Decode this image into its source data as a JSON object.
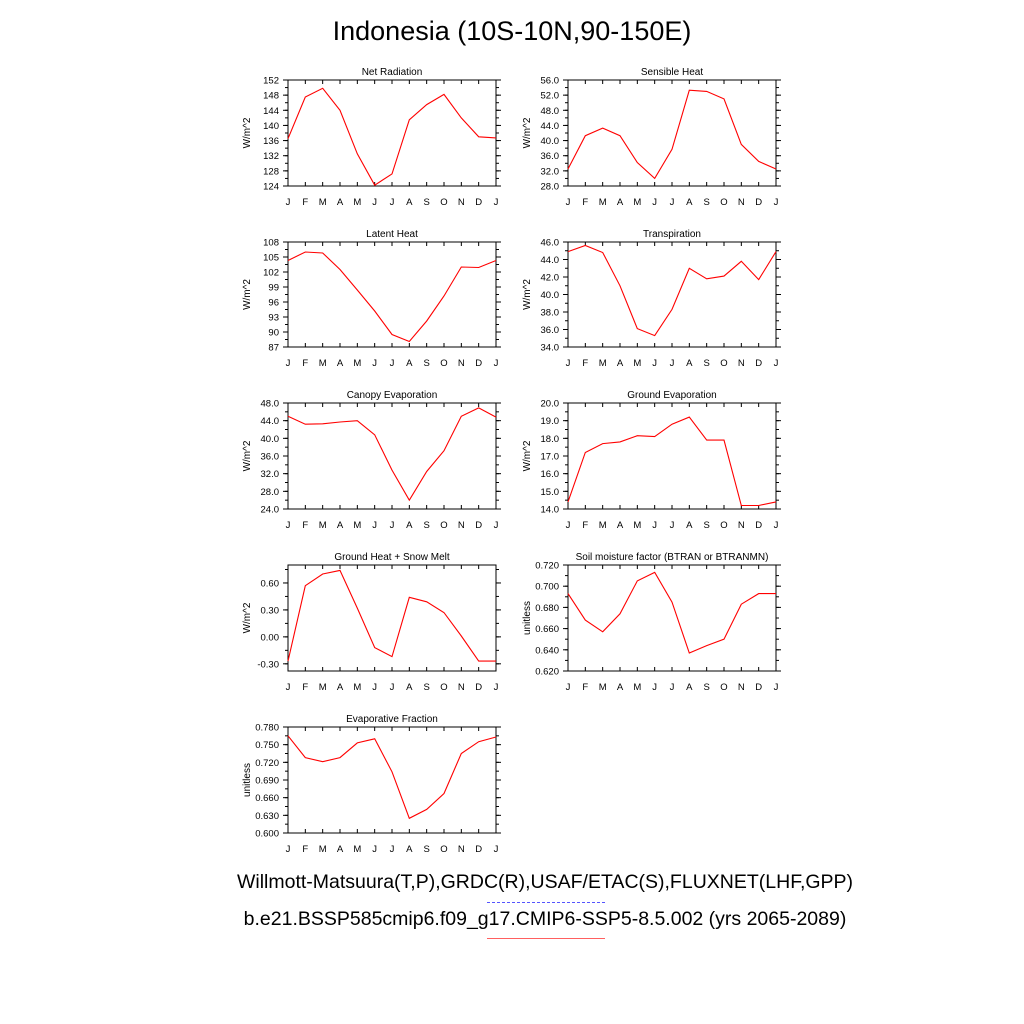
{
  "title": "Indonesia (10S-10N,90-150E)",
  "month_labels": [
    "J",
    "F",
    "M",
    "A",
    "M",
    "J",
    "J",
    "A",
    "S",
    "O",
    "N",
    "D",
    "J"
  ],
  "line_color": "#ff0000",
  "footer": {
    "line1": "Willmott-Matsuura(T,P),GRDC(R),USAF/ETAC(S),FLUXNET(LHF,GPP)",
    "line2": "b.e21.BSSP585cmip6.f09_g17.CMIP6-SSP5-8.5.002 (yrs 2065-2089)"
  },
  "chart_data": [
    {
      "type": "line",
      "title": "Net Radiation",
      "ylabel": "W/m^2",
      "ylim": [
        124,
        152
      ],
      "yticks": [
        "124",
        "128",
        "132",
        "136",
        "140",
        "144",
        "148",
        "152"
      ],
      "tick_values": [
        124,
        128,
        132,
        136,
        140,
        144,
        148,
        152
      ],
      "values": [
        136.5,
        147.5,
        149.8,
        144,
        132.5,
        124.2,
        127.2,
        141.5,
        145.5,
        148.2,
        142,
        137,
        136.7
      ]
    },
    {
      "type": "line",
      "title": "Sensible Heat",
      "ylabel": "W/m^2",
      "ylim": [
        28,
        56
      ],
      "yticks": [
        "28.0",
        "32.0",
        "36.0",
        "40.0",
        "44.0",
        "48.0",
        "52.0",
        "56.0"
      ],
      "tick_values": [
        28,
        32,
        36,
        40,
        44,
        48,
        52,
        56
      ],
      "values": [
        32.5,
        41.3,
        43.3,
        41.3,
        34.2,
        30,
        37.7,
        53.3,
        53,
        51,
        39,
        34.5,
        32.5
      ]
    },
    {
      "type": "line",
      "title": "Latent Heat",
      "ylabel": "W/m^2",
      "ylim": [
        87,
        108
      ],
      "yticks": [
        "87",
        "90",
        "93",
        "96",
        "99",
        "102",
        "105",
        "108"
      ],
      "tick_values": [
        87,
        90,
        93,
        96,
        99,
        102,
        105,
        108
      ],
      "values": [
        104.3,
        106,
        105.8,
        102.5,
        98.4,
        94.2,
        89.5,
        88.1,
        92.2,
        97.2,
        103,
        102.9,
        104.3
      ]
    },
    {
      "type": "line",
      "title": "Transpiration",
      "ylabel": "W/m^2",
      "ylim": [
        34,
        46
      ],
      "yticks": [
        "34.0",
        "36.0",
        "38.0",
        "40.0",
        "42.0",
        "44.0",
        "46.0"
      ],
      "tick_values": [
        34,
        36,
        38,
        40,
        42,
        44,
        46
      ],
      "values": [
        44.9,
        45.6,
        44.8,
        41,
        36.1,
        35.3,
        38.3,
        43,
        41.8,
        42.1,
        43.8,
        41.7,
        44.9
      ]
    },
    {
      "type": "line",
      "title": "Canopy Evaporation",
      "ylabel": "W/m^2",
      "ylim": [
        24,
        48
      ],
      "yticks": [
        "24.0",
        "28.0",
        "32.0",
        "36.0",
        "40.0",
        "44.0",
        "48.0"
      ],
      "tick_values": [
        24,
        28,
        32,
        36,
        40,
        44,
        48
      ],
      "values": [
        45,
        43.2,
        43.3,
        43.7,
        44,
        40.8,
        32.8,
        26,
        32.5,
        37.2,
        45,
        46.9,
        44.8
      ]
    },
    {
      "type": "line",
      "title": "Ground Evaporation",
      "ylabel": "W/m^2",
      "ylim": [
        14,
        20
      ],
      "yticks": [
        "14.0",
        "15.0",
        "16.0",
        "17.0",
        "18.0",
        "19.0",
        "20.0"
      ],
      "tick_values": [
        14,
        15,
        16,
        17,
        18,
        19,
        20
      ],
      "values": [
        14.4,
        17.2,
        17.7,
        17.8,
        18.15,
        18.1,
        18.8,
        19.2,
        17.9,
        17.9,
        14.2,
        14.2,
        14.4
      ]
    },
    {
      "type": "line",
      "title": "Ground Heat + Snow Melt",
      "ylabel": "W/m^2",
      "ylim": [
        -0.38,
        0.8
      ],
      "yticks": [
        "-0.30",
        "0.00",
        "0.30",
        "0.60"
      ],
      "tick_values": [
        -0.3,
        0,
        0.3,
        0.6
      ],
      "values": [
        -0.27,
        0.57,
        0.7,
        0.74,
        0.32,
        -0.12,
        -0.22,
        0.44,
        0.39,
        0.27,
        0.01,
        -0.27,
        -0.27
      ]
    },
    {
      "type": "line",
      "title": "Soil moisture factor (BTRAN or BTRANMN)",
      "ylabel": "unitless",
      "ylim": [
        0.62,
        0.72
      ],
      "yticks": [
        "0.620",
        "0.640",
        "0.660",
        "0.680",
        "0.700",
        "0.720"
      ],
      "tick_values": [
        0.62,
        0.64,
        0.66,
        0.68,
        0.7,
        0.72
      ],
      "values": [
        0.693,
        0.668,
        0.657,
        0.674,
        0.705,
        0.713,
        0.685,
        0.637,
        0.644,
        0.65,
        0.683,
        0.693,
        0.693
      ]
    },
    {
      "type": "line",
      "title": "Evaporative Fraction",
      "ylabel": "unitless",
      "ylim": [
        0.6,
        0.78
      ],
      "yticks": [
        "0.600",
        "0.630",
        "0.660",
        "0.690",
        "0.720",
        "0.750",
        "0.780"
      ],
      "tick_values": [
        0.6,
        0.63,
        0.66,
        0.69,
        0.72,
        0.75,
        0.78
      ],
      "values": [
        0.765,
        0.728,
        0.721,
        0.728,
        0.753,
        0.76,
        0.704,
        0.625,
        0.64,
        0.667,
        0.735,
        0.755,
        0.763
      ]
    }
  ]
}
